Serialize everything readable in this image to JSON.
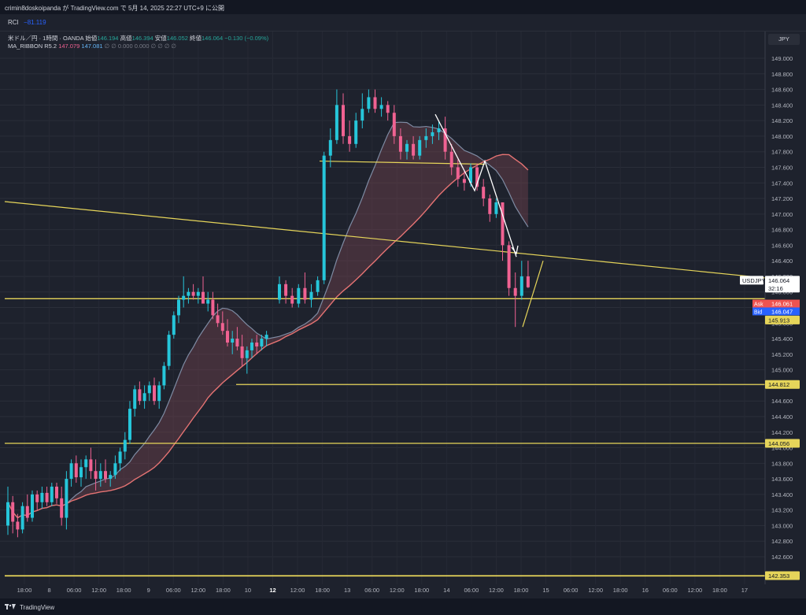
{
  "header": {
    "publisher": "crimin8doskoipanda が TradingView.com で 5月 14, 2025 22:27 UTC+9 に公開"
  },
  "indicator_bar": {
    "label": "RCI",
    "value": "−81.119"
  },
  "legend": {
    "symbol": "米ドル／円 · 1時間 · OANDA",
    "open_label": "始値",
    "open": "146.194",
    "high_label": "高値",
    "high": "146.394",
    "low_label": "安値",
    "low": "146.052",
    "close_label": "終値",
    "close": "146.064",
    "change": "−0.130 (−0.09%)",
    "ribbon_name": "MA_RIBBON R5.2",
    "ribbon_v1": "147.079",
    "ribbon_v2": "147.081",
    "ribbon_rest": "∅  ∅  0.000  0.000  ∅  ∅  ∅  ∅"
  },
  "axis": {
    "currency": "JPY"
  },
  "price_tags": {
    "symbol": "USDJPY",
    "last": "146.064",
    "countdown": "32:16",
    "ask_label": "Ask",
    "ask": "146.061",
    "bid_label": "Bid",
    "bid": "146.047",
    "level_1": "145.913",
    "level_2": "144.812",
    "level_3": "144.056",
    "level_4": "142.353"
  },
  "footer": {
    "brand": "TradingView"
  },
  "colors": {
    "background": "#1e222d",
    "up_candle": "#26c6da",
    "down_candle": "#f06292",
    "fast_ma": "#7e8ba3",
    "slow_ma": "#e57373",
    "horizontal_line": "#e6d55a",
    "ask": "#ef5350",
    "bid": "#2962ff"
  },
  "chart_data": {
    "type": "candlestick",
    "symbol": "USDJPY",
    "timeframe": "1時間",
    "ylim": [
      142.6,
      149.0
    ],
    "y_ticks": [
      "142.600",
      "142.800",
      "143.000",
      "143.200",
      "143.400",
      "143.600",
      "143.800",
      "144.000",
      "144.200",
      "144.400",
      "144.600",
      "144.800",
      "145.000",
      "145.200",
      "145.400",
      "145.600",
      "145.800",
      "146.000",
      "146.200",
      "146.400",
      "146.600",
      "146.800",
      "147.000",
      "147.200",
      "147.400",
      "147.600",
      "147.800",
      "148.000",
      "148.200",
      "148.400",
      "148.600",
      "148.800",
      "149.000"
    ],
    "x_ticks": [
      "18:00",
      "8",
      "06:00",
      "12:00",
      "18:00",
      "9",
      "06:00",
      "12:00",
      "18:00",
      "10",
      "12",
      "12:00",
      "18:00",
      "13",
      "06:00",
      "12:00",
      "18:00",
      "14",
      "06:00",
      "12:00",
      "18:00",
      "15",
      "06:00",
      "12:00",
      "18:00",
      "16",
      "06:00",
      "12:00",
      "18:00",
      "17"
    ],
    "x_tick_bold": [
      "12"
    ],
    "horizontal_lines": [
      145.913,
      144.812,
      144.056,
      142.353
    ],
    "trendline": {
      "from": [
        0,
        147.16
      ],
      "to": [
        188,
        146.18
      ]
    },
    "candles_ohlc": [
      [
        143.0,
        143.5,
        142.88,
        143.3
      ],
      [
        143.3,
        143.38,
        142.9,
        143.05
      ],
      [
        143.05,
        143.15,
        142.85,
        142.95
      ],
      [
        142.95,
        143.3,
        142.9,
        143.25
      ],
      [
        143.25,
        143.4,
        143.05,
        143.1
      ],
      [
        143.1,
        143.45,
        143.05,
        143.4
      ],
      [
        143.4,
        143.45,
        143.2,
        143.3
      ],
      [
        143.3,
        143.5,
        143.22,
        143.42
      ],
      [
        143.42,
        143.5,
        143.25,
        143.3
      ],
      [
        143.3,
        143.55,
        143.25,
        143.5
      ],
      [
        143.5,
        143.55,
        143.28,
        143.35
      ],
      [
        143.35,
        143.5,
        143.0,
        143.1
      ],
      [
        143.1,
        143.7,
        142.95,
        143.6
      ],
      [
        143.6,
        143.85,
        143.5,
        143.8
      ],
      [
        143.8,
        143.9,
        143.55,
        143.62
      ],
      [
        143.62,
        143.85,
        143.5,
        143.75
      ],
      [
        143.75,
        143.9,
        143.6,
        143.85
      ],
      [
        143.85,
        144.0,
        143.6,
        143.7
      ],
      [
        143.7,
        143.85,
        143.45,
        143.6
      ],
      [
        143.6,
        143.8,
        143.5,
        143.7
      ],
      [
        143.7,
        143.85,
        143.55,
        143.6
      ],
      [
        143.6,
        143.7,
        143.5,
        143.65
      ],
      [
        143.65,
        143.9,
        143.6,
        143.8
      ],
      [
        143.8,
        144.0,
        143.7,
        143.95
      ],
      [
        143.95,
        144.2,
        143.85,
        144.1
      ],
      [
        144.1,
        144.6,
        144.05,
        144.5
      ],
      [
        144.5,
        144.8,
        144.4,
        144.75
      ],
      [
        144.75,
        144.85,
        144.55,
        144.6
      ],
      [
        144.6,
        144.8,
        144.5,
        144.7
      ],
      [
        144.7,
        144.85,
        144.6,
        144.8
      ],
      [
        144.8,
        144.9,
        144.55,
        144.6
      ],
      [
        144.6,
        144.85,
        144.5,
        144.8
      ],
      [
        144.8,
        145.1,
        144.75,
        145.05
      ],
      [
        145.05,
        145.5,
        145.0,
        145.45
      ],
      [
        145.45,
        145.75,
        145.4,
        145.7
      ],
      [
        145.7,
        145.95,
        145.6,
        145.9
      ],
      [
        145.9,
        146.2,
        145.8,
        145.95
      ],
      [
        145.95,
        146.05,
        145.85,
        146.0
      ],
      [
        146.0,
        146.1,
        145.9,
        145.95
      ],
      [
        145.95,
        146.05,
        145.85,
        146.0
      ],
      [
        146.0,
        146.2,
        145.9,
        145.85
      ],
      [
        145.85,
        146.0,
        145.75,
        145.9
      ],
      [
        145.9,
        146.0,
        145.65,
        145.7
      ],
      [
        145.7,
        145.85,
        145.55,
        145.6
      ],
      [
        145.6,
        145.75,
        145.45,
        145.5
      ],
      [
        145.5,
        145.65,
        145.3,
        145.35
      ],
      [
        145.35,
        145.5,
        145.2,
        145.4
      ],
      [
        145.4,
        145.55,
        145.25,
        145.3
      ],
      [
        145.3,
        145.45,
        145.05,
        145.15
      ],
      [
        145.15,
        145.3,
        144.95,
        145.25
      ],
      [
        145.25,
        145.4,
        145.15,
        145.35
      ],
      [
        145.35,
        145.45,
        145.2,
        145.3
      ],
      [
        145.3,
        145.45,
        145.25,
        145.4
      ],
      [
        145.4,
        145.5,
        145.3,
        145.45
      ],
      [
        145.9,
        146.2,
        145.85,
        146.1
      ],
      [
        146.1,
        146.15,
        145.85,
        145.95
      ],
      [
        145.95,
        146.05,
        145.8,
        145.85
      ],
      [
        145.85,
        146.1,
        145.8,
        146.05
      ],
      [
        146.05,
        146.25,
        145.85,
        145.9
      ],
      [
        145.9,
        146.1,
        145.8,
        146.0
      ],
      [
        146.0,
        146.2,
        145.95,
        146.15
      ],
      [
        146.15,
        147.8,
        146.1,
        147.75
      ],
      [
        147.75,
        148.1,
        147.6,
        147.95
      ],
      [
        147.95,
        148.6,
        147.9,
        148.4
      ],
      [
        148.4,
        148.55,
        147.9,
        148.0
      ],
      [
        148.0,
        148.2,
        147.8,
        147.9
      ],
      [
        147.9,
        148.3,
        147.85,
        148.2
      ],
      [
        148.2,
        148.55,
        148.1,
        148.35
      ],
      [
        148.35,
        148.6,
        148.3,
        148.5
      ],
      [
        148.5,
        148.6,
        148.3,
        148.35
      ],
      [
        148.35,
        148.5,
        148.25,
        148.4
      ],
      [
        148.4,
        148.45,
        148.2,
        148.3
      ],
      [
        148.3,
        148.4,
        147.9,
        148.0
      ],
      [
        148.0,
        148.1,
        147.7,
        147.8
      ],
      [
        147.8,
        147.95,
        147.7,
        147.9
      ],
      [
        147.9,
        148.0,
        147.7,
        147.75
      ],
      [
        147.75,
        148.0,
        147.7,
        147.95
      ],
      [
        147.95,
        148.1,
        147.85,
        148.0
      ],
      [
        148.0,
        148.15,
        147.9,
        148.05
      ],
      [
        148.05,
        148.2,
        147.95,
        148.1
      ],
      [
        148.1,
        148.25,
        147.7,
        147.8
      ],
      [
        147.8,
        147.9,
        147.5,
        147.6
      ],
      [
        147.6,
        147.7,
        147.35,
        147.45
      ],
      [
        147.45,
        147.55,
        147.3,
        147.4
      ],
      [
        147.4,
        147.65,
        147.35,
        147.6
      ],
      [
        147.6,
        147.65,
        147.3,
        147.35
      ],
      [
        147.35,
        147.45,
        147.1,
        147.2
      ],
      [
        147.2,
        147.25,
        146.9,
        147.0
      ],
      [
        147.0,
        147.2,
        146.95,
        147.15
      ],
      [
        147.15,
        147.0,
        146.4,
        146.6
      ],
      [
        146.6,
        146.65,
        145.95,
        146.05
      ],
      [
        146.05,
        146.25,
        145.55,
        145.95
      ],
      [
        145.95,
        146.4,
        145.9,
        146.2
      ],
      [
        146.2,
        146.4,
        146.05,
        146.06
      ]
    ]
  }
}
